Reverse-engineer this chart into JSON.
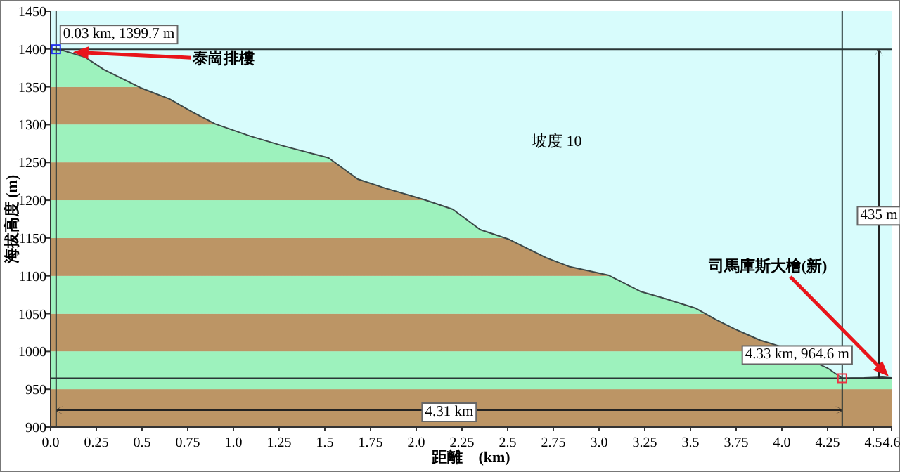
{
  "chart_data": {
    "type": "area",
    "xlabel": "距離　(km)",
    "ylabel": "海拔高度 (m)",
    "color": "#3c4848",
    "x": [
      0,
      0.03,
      0.07,
      0.19,
      0.29,
      0.49,
      0.65,
      0.78,
      0.9,
      1.09,
      1.27,
      1.52,
      1.68,
      1.83,
      2.04,
      2.2,
      2.35,
      2.51,
      2.71,
      2.84,
      3.05,
      3.23,
      3.36,
      3.53,
      3.64,
      3.74,
      3.88,
      4.0,
      4.25,
      4.33,
      4.45,
      4.55,
      4.6
    ],
    "values": [
      1400,
      1399.7,
      1398,
      1389,
      1373,
      1349,
      1334,
      1316,
      1301,
      1285,
      1272,
      1256,
      1228,
      1216,
      1201,
      1188,
      1161,
      1148,
      1124,
      1112,
      1101,
      1079,
      1070,
      1057,
      1042,
      1030,
      1015,
      1006,
      978,
      964.6,
      965,
      966,
      965
    ],
    "xlim": [
      0,
      4.6
    ],
    "ylim": [
      900,
      1450
    ],
    "xticks": [
      {
        "value": 0,
        "label": "0.0"
      },
      0.25,
      0.5,
      0.75,
      {
        "value": 1,
        "label": "1.0"
      },
      1.25,
      1.5,
      1.75,
      {
        "value": 2,
        "label": "2.0"
      },
      2.25,
      2.5,
      2.75,
      {
        "value": 3,
        "label": "3.0"
      },
      3.25,
      3.5,
      3.75,
      {
        "value": 4,
        "label": "4.0"
      },
      4.25,
      4.5,
      4.6
    ],
    "yticks": [
      900,
      950,
      1000,
      1050,
      1100,
      1150,
      1200,
      1250,
      1300,
      1350,
      1400,
      1450
    ],
    "grid": false,
    "bands": [
      {
        "axis": "y",
        "from": 900,
        "to": 950,
        "color": "#bc9565"
      },
      {
        "axis": "y",
        "from": 950,
        "to": 1000,
        "color": "#9df2bd"
      },
      {
        "axis": "y",
        "from": 1000,
        "to": 1050,
        "color": "#bc9565"
      },
      {
        "axis": "y",
        "from": 1050,
        "to": 1100,
        "color": "#9df2bd"
      },
      {
        "axis": "y",
        "from": 1100,
        "to": 1150,
        "color": "#bc9565"
      },
      {
        "axis": "y",
        "from": 1150,
        "to": 1200,
        "color": "#9df2bd"
      },
      {
        "axis": "y",
        "from": 1200,
        "to": 1250,
        "color": "#bc9565"
      },
      {
        "axis": "y",
        "from": 1250,
        "to": 1300,
        "color": "#9df2bd"
      },
      {
        "axis": "y",
        "from": 1300,
        "to": 1350,
        "color": "#bc9565"
      },
      {
        "axis": "y",
        "from": 1350,
        "to": 1400,
        "color": "#9df2bd"
      }
    ],
    "ref_lines": [
      {
        "axis": "x",
        "value": 0.03,
        "color": "#2a3636"
      },
      {
        "axis": "x",
        "value": 4.33,
        "color": "#2a3636"
      },
      {
        "axis": "y",
        "value": 1399.7,
        "color": "#2a3636"
      },
      {
        "axis": "y",
        "value": 964.6,
        "color": "#2a3636"
      }
    ],
    "annotations": [
      {
        "text": "0.03 km, 1399.7 m",
        "x": 0.03,
        "y": 1399.7
      },
      "泰崗排樓",
      "坡度 10",
      "435 m",
      "司馬庫斯大檜(新)",
      {
        "text": "4.33 km, 964.6 m",
        "x": 4.33,
        "y": 964.6
      },
      "4.31 km"
    ]
  }
}
